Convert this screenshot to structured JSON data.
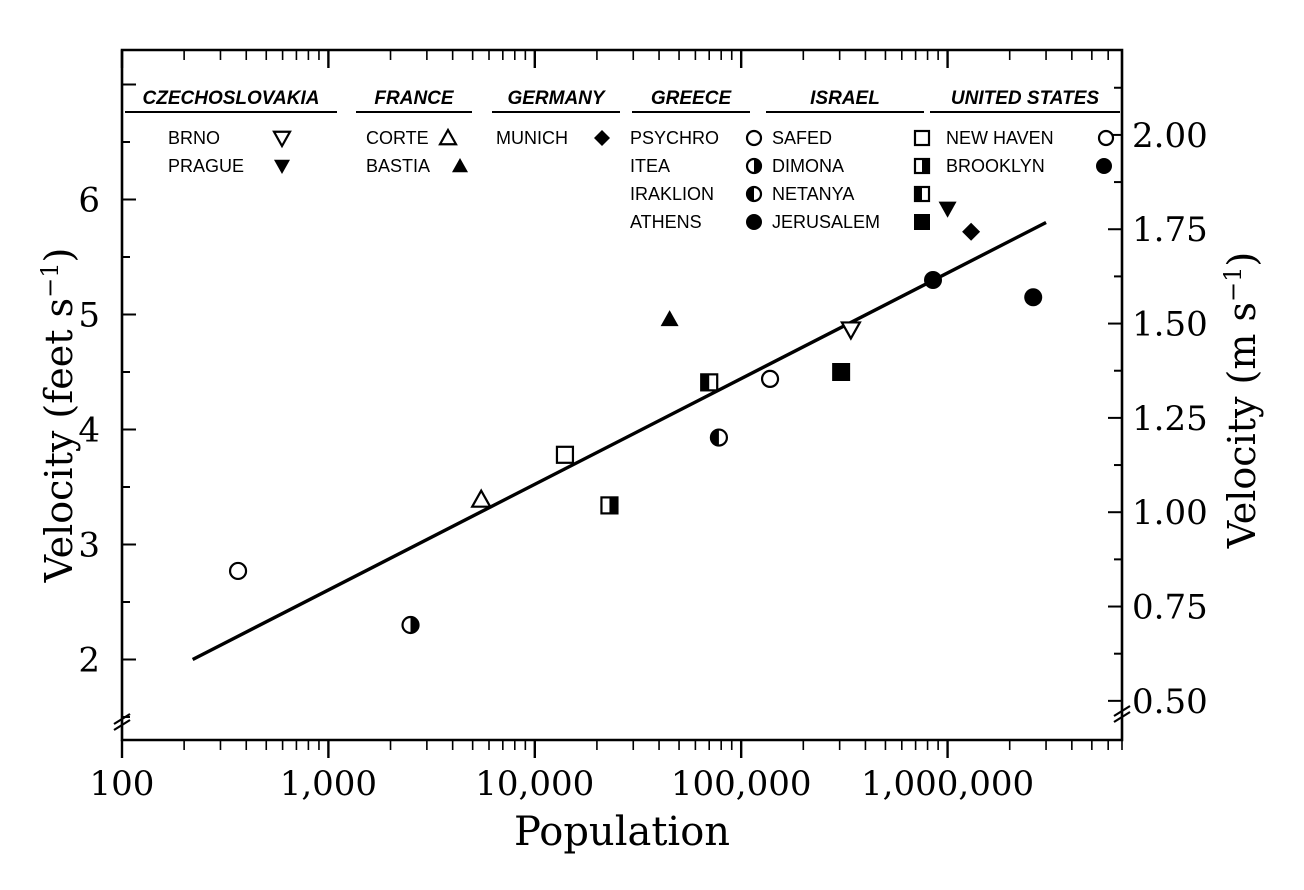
{
  "chart_data": {
    "type": "scatter",
    "xlabel": "Population",
    "ylabel_left": "Velocity (feet s",
    "ylabel_left_sup": "−1",
    "ylabel_left_close": ")",
    "ylabel_right": "Velocity (m s",
    "ylabel_right_sup": "−1",
    "ylabel_right_close": ")",
    "x_scale": "log",
    "xlim": [
      100,
      7000000
    ],
    "ylim": [
      1.3,
      7.3
    ],
    "x_ticks": [
      {
        "value": 100,
        "label": "100"
      },
      {
        "value": 1000,
        "label": "1,000"
      },
      {
        "value": 10000,
        "label": "10,000"
      },
      {
        "value": 100000,
        "label": "100,000"
      },
      {
        "value": 1000000,
        "label": "1,000,000"
      }
    ],
    "y_left_ticks": [
      {
        "value": 2,
        "label": "2"
      },
      {
        "value": 3,
        "label": "3"
      },
      {
        "value": 4,
        "label": "4"
      },
      {
        "value": 5,
        "label": "5"
      },
      {
        "value": 6,
        "label": "6"
      }
    ],
    "y_right_ticks": [
      {
        "value": 0.5,
        "label": "0.50"
      },
      {
        "value": 0.75,
        "label": "0.75"
      },
      {
        "value": 1.0,
        "label": "1.00"
      },
      {
        "value": 1.25,
        "label": "1.25"
      },
      {
        "value": 1.5,
        "label": "1.50"
      },
      {
        "value": 1.75,
        "label": "1.75"
      },
      {
        "value": 2.0,
        "label": "2.00"
      }
    ],
    "ft_per_m": 3.2808,
    "fit_line": {
      "x": [
        220,
        3000000
      ],
      "y": [
        2.0,
        5.8
      ]
    },
    "legend_groups": [
      {
        "country": "CZECHOSLOVAKIA",
        "cities": [
          {
            "name": "BRNO",
            "marker": "triangle-down-open"
          },
          {
            "name": "PRAGUE",
            "marker": "triangle-down-filled"
          }
        ]
      },
      {
        "country": "FRANCE",
        "cities": [
          {
            "name": "CORTE",
            "marker": "triangle-up-open"
          },
          {
            "name": "BASTIA",
            "marker": "triangle-up-filled"
          }
        ]
      },
      {
        "country": "GERMANY",
        "cities": [
          {
            "name": "MUNICH",
            "marker": "diamond-filled"
          }
        ]
      },
      {
        "country": "GREECE",
        "cities": [
          {
            "name": "PSYCHRO",
            "marker": "circle-open"
          },
          {
            "name": "ITEA",
            "marker": "circle-half-right"
          },
          {
            "name": "IRAKLION",
            "marker": "circle-half-left"
          },
          {
            "name": "ATHENS",
            "marker": "circle-filled"
          }
        ]
      },
      {
        "country": "ISRAEL",
        "cities": [
          {
            "name": "SAFED",
            "marker": "square-open"
          },
          {
            "name": "DIMONA",
            "marker": "square-half-right"
          },
          {
            "name": "NETANYA",
            "marker": "square-half-left"
          },
          {
            "name": "JERUSALEM",
            "marker": "square-filled"
          }
        ]
      },
      {
        "country": "UNITED STATES",
        "cities": [
          {
            "name": "NEW HAVEN",
            "marker": "circle-open"
          },
          {
            "name": "BROOKLYN",
            "marker": "circle-filled"
          }
        ]
      }
    ],
    "points": [
      {
        "city": "PSYCHRO",
        "marker": "circle-open",
        "population": 365,
        "velocity": 2.77
      },
      {
        "city": "ITEA",
        "marker": "circle-half-right",
        "population": 2500,
        "velocity": 2.3
      },
      {
        "city": "CORTE",
        "marker": "triangle-up-open",
        "population": 5500,
        "velocity": 3.39
      },
      {
        "city": "SAFED",
        "marker": "square-open",
        "population": 14000,
        "velocity": 3.78
      },
      {
        "city": "DIMONA",
        "marker": "square-half-right",
        "population": 23000,
        "velocity": 3.34
      },
      {
        "city": "BASTIA",
        "marker": "triangle-up-filled",
        "population": 45000,
        "velocity": 4.96
      },
      {
        "city": "NETANYA",
        "marker": "square-half-left",
        "population": 70000,
        "velocity": 4.41
      },
      {
        "city": "IRAKLION",
        "marker": "circle-half-left",
        "population": 78000,
        "velocity": 3.93
      },
      {
        "city": "NEW HAVEN",
        "marker": "circle-open",
        "population": 138000,
        "velocity": 4.44
      },
      {
        "city": "JERUSALEM",
        "marker": "square-filled",
        "population": 305000,
        "velocity": 4.5
      },
      {
        "city": "BRNO",
        "marker": "triangle-down-open",
        "population": 340000,
        "velocity": 4.87
      },
      {
        "city": "ATHENS",
        "marker": "circle-filled",
        "population": 850000,
        "velocity": 5.3
      },
      {
        "city": "PRAGUE",
        "marker": "triangle-down-filled",
        "population": 1000000,
        "velocity": 5.92
      },
      {
        "city": "MUNICH",
        "marker": "diamond-filled",
        "population": 1300000,
        "velocity": 5.72
      },
      {
        "city": "BROOKLYN",
        "marker": "circle-filled",
        "population": 2600000,
        "velocity": 5.15
      }
    ]
  }
}
